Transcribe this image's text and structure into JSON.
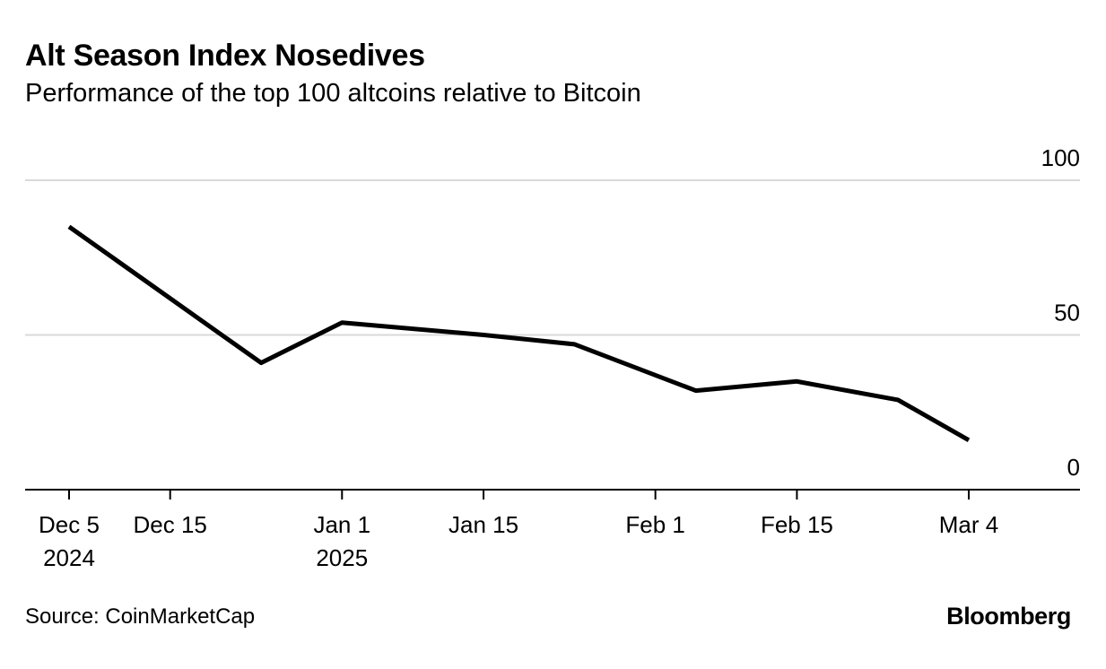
{
  "header": {
    "title": "Alt Season Index Nosedives",
    "subtitle": "Performance of the top 100 altcoins relative to Bitcoin"
  },
  "footer": {
    "source": "Source: CoinMarketCap",
    "brand": "Bloomberg"
  },
  "colors": {
    "line": "#000000",
    "grid": "#d9d9d9",
    "axis": "#000000",
    "background": "#ffffff"
  },
  "chart_data": {
    "type": "line",
    "title": "Alt Season Index Nosedives",
    "subtitle": "Performance of the top 100 altcoins relative to Bitcoin",
    "xlabel": "",
    "ylabel": "",
    "y_axis_side": "right",
    "ylim": [
      0,
      100
    ],
    "yticks": [
      0,
      50,
      100
    ],
    "grid": true,
    "x_domain": [
      "2024-12-02",
      "2025-03-15"
    ],
    "xticks": [
      {
        "date": "2024-12-05",
        "line1": "Dec 5",
        "line2": "2024"
      },
      {
        "date": "2024-12-15",
        "line1": "Dec 15",
        "line2": ""
      },
      {
        "date": "2025-01-01",
        "line1": "Jan 1",
        "line2": "2025"
      },
      {
        "date": "2025-01-15",
        "line1": "Jan 15",
        "line2": ""
      },
      {
        "date": "2025-02-01",
        "line1": "Feb 1",
        "line2": ""
      },
      {
        "date": "2025-02-15",
        "line1": "Feb 15",
        "line2": ""
      },
      {
        "date": "2025-03-04",
        "line1": "Mar 4",
        "line2": ""
      }
    ],
    "series": [
      {
        "name": "Alt Season Index",
        "points": [
          {
            "x": "2024-12-05",
            "y": 85
          },
          {
            "x": "2024-12-24",
            "y": 41
          },
          {
            "x": "2025-01-01",
            "y": 54
          },
          {
            "x": "2025-01-15",
            "y": 50
          },
          {
            "x": "2025-01-24",
            "y": 47
          },
          {
            "x": "2025-02-05",
            "y": 32
          },
          {
            "x": "2025-02-15",
            "y": 35
          },
          {
            "x": "2025-02-25",
            "y": 29
          },
          {
            "x": "2025-03-04",
            "y": 16
          }
        ]
      }
    ],
    "source": "Source: CoinMarketCap"
  }
}
